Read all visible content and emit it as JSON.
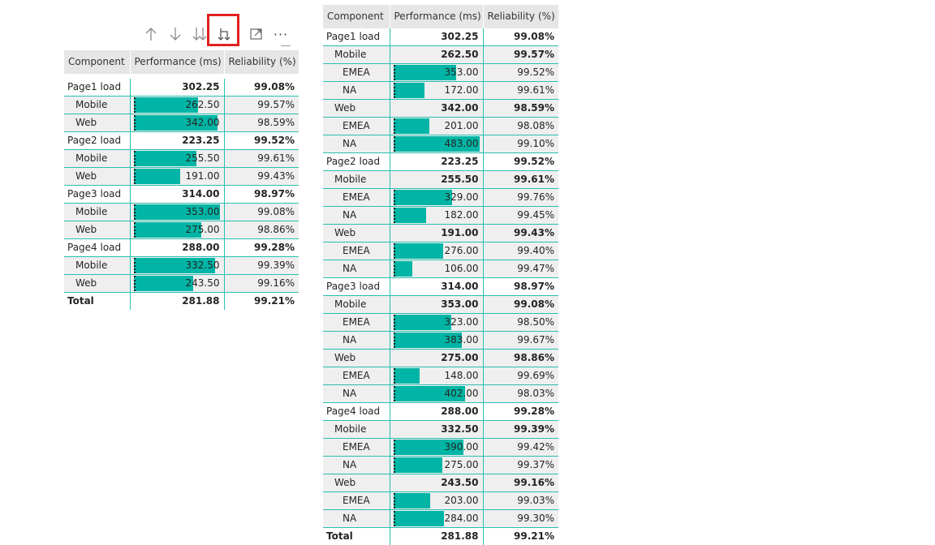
{
  "toolbar": {
    "icons": [
      "arrow-up-icon",
      "arrow-down-icon",
      "double-arrow-down-icon",
      "expand-next-level-icon",
      "focus-mode-icon",
      "more-options-icon"
    ],
    "more_label": "···"
  },
  "accent_color": "#00b5a5",
  "highlight_color": "#e02020",
  "left_matrix": {
    "columns": [
      "Component",
      "Performance (ms)",
      "Reliability (%)"
    ],
    "perf_max": 353,
    "rows": [
      {
        "label": "Page1 load",
        "perf": "302.25",
        "rel": "99.08%",
        "level": 0,
        "bold": true,
        "bar": false
      },
      {
        "label": "Mobile",
        "perf": "262.50",
        "rel": "99.57%",
        "level": 1,
        "bold": false,
        "bar": true,
        "value": 262.5
      },
      {
        "label": "Web",
        "perf": "342.00",
        "rel": "98.59%",
        "level": 1,
        "bold": false,
        "bar": true,
        "value": 342
      },
      {
        "label": "Page2 load",
        "perf": "223.25",
        "rel": "99.52%",
        "level": 0,
        "bold": true,
        "bar": false
      },
      {
        "label": "Mobile",
        "perf": "255.50",
        "rel": "99.61%",
        "level": 1,
        "bold": false,
        "bar": true,
        "value": 255.5
      },
      {
        "label": "Web",
        "perf": "191.00",
        "rel": "99.43%",
        "level": 1,
        "bold": false,
        "bar": true,
        "value": 191
      },
      {
        "label": "Page3 load",
        "perf": "314.00",
        "rel": "98.97%",
        "level": 0,
        "bold": true,
        "bar": false
      },
      {
        "label": "Mobile",
        "perf": "353.00",
        "rel": "99.08%",
        "level": 1,
        "bold": false,
        "bar": true,
        "value": 353
      },
      {
        "label": "Web",
        "perf": "275.00",
        "rel": "98.86%",
        "level": 1,
        "bold": false,
        "bar": true,
        "value": 275
      },
      {
        "label": "Page4 load",
        "perf": "288.00",
        "rel": "99.28%",
        "level": 0,
        "bold": true,
        "bar": false
      },
      {
        "label": "Mobile",
        "perf": "332.50",
        "rel": "99.39%",
        "level": 1,
        "bold": false,
        "bar": true,
        "value": 332.5
      },
      {
        "label": "Web",
        "perf": "243.50",
        "rel": "99.16%",
        "level": 1,
        "bold": false,
        "bar": true,
        "value": 243.5
      }
    ],
    "total": {
      "label": "Total",
      "perf": "281.88",
      "rel": "99.21%"
    }
  },
  "right_matrix": {
    "columns": [
      "Component",
      "Performance (ms)",
      "Reliability (%)"
    ],
    "perf_max": 483,
    "rows": [
      {
        "label": "Page1 load",
        "perf": "302.25",
        "rel": "99.08%",
        "level": 0,
        "bold": true,
        "bar": false
      },
      {
        "label": "Mobile",
        "perf": "262.50",
        "rel": "99.57%",
        "level": 1,
        "bold": true,
        "bar": false
      },
      {
        "label": "EMEA",
        "perf": "353.00",
        "rel": "99.52%",
        "level": 2,
        "bold": false,
        "bar": true,
        "value": 353
      },
      {
        "label": "NA",
        "perf": "172.00",
        "rel": "99.61%",
        "level": 2,
        "bold": false,
        "bar": true,
        "value": 172
      },
      {
        "label": "Web",
        "perf": "342.00",
        "rel": "98.59%",
        "level": 1,
        "bold": true,
        "bar": false
      },
      {
        "label": "EMEA",
        "perf": "201.00",
        "rel": "98.08%",
        "level": 2,
        "bold": false,
        "bar": true,
        "value": 201
      },
      {
        "label": "NA",
        "perf": "483.00",
        "rel": "99.10%",
        "level": 2,
        "bold": false,
        "bar": true,
        "value": 483
      },
      {
        "label": "Page2 load",
        "perf": "223.25",
        "rel": "99.52%",
        "level": 0,
        "bold": true,
        "bar": false
      },
      {
        "label": "Mobile",
        "perf": "255.50",
        "rel": "99.61%",
        "level": 1,
        "bold": true,
        "bar": false
      },
      {
        "label": "EMEA",
        "perf": "329.00",
        "rel": "99.76%",
        "level": 2,
        "bold": false,
        "bar": true,
        "value": 329
      },
      {
        "label": "NA",
        "perf": "182.00",
        "rel": "99.45%",
        "level": 2,
        "bold": false,
        "bar": true,
        "value": 182
      },
      {
        "label": "Web",
        "perf": "191.00",
        "rel": "99.43%",
        "level": 1,
        "bold": true,
        "bar": false
      },
      {
        "label": "EMEA",
        "perf": "276.00",
        "rel": "99.40%",
        "level": 2,
        "bold": false,
        "bar": true,
        "value": 276
      },
      {
        "label": "NA",
        "perf": "106.00",
        "rel": "99.47%",
        "level": 2,
        "bold": false,
        "bar": true,
        "value": 106
      },
      {
        "label": "Page3 load",
        "perf": "314.00",
        "rel": "98.97%",
        "level": 0,
        "bold": true,
        "bar": false
      },
      {
        "label": "Mobile",
        "perf": "353.00",
        "rel": "99.08%",
        "level": 1,
        "bold": true,
        "bar": false
      },
      {
        "label": "EMEA",
        "perf": "323.00",
        "rel": "98.50%",
        "level": 2,
        "bold": false,
        "bar": true,
        "value": 323
      },
      {
        "label": "NA",
        "perf": "383.00",
        "rel": "99.67%",
        "level": 2,
        "bold": false,
        "bar": true,
        "value": 383
      },
      {
        "label": "Web",
        "perf": "275.00",
        "rel": "98.86%",
        "level": 1,
        "bold": true,
        "bar": false
      },
      {
        "label": "EMEA",
        "perf": "148.00",
        "rel": "99.69%",
        "level": 2,
        "bold": false,
        "bar": true,
        "value": 148
      },
      {
        "label": "NA",
        "perf": "402.00",
        "rel": "98.03%",
        "level": 2,
        "bold": false,
        "bar": true,
        "value": 402
      },
      {
        "label": "Page4 load",
        "perf": "288.00",
        "rel": "99.28%",
        "level": 0,
        "bold": true,
        "bar": false
      },
      {
        "label": "Mobile",
        "perf": "332.50",
        "rel": "99.39%",
        "level": 1,
        "bold": true,
        "bar": false
      },
      {
        "label": "EMEA",
        "perf": "390.00",
        "rel": "99.42%",
        "level": 2,
        "bold": false,
        "bar": true,
        "value": 390
      },
      {
        "label": "NA",
        "perf": "275.00",
        "rel": "99.37%",
        "level": 2,
        "bold": false,
        "bar": true,
        "value": 275
      },
      {
        "label": "Web",
        "perf": "243.50",
        "rel": "99.16%",
        "level": 1,
        "bold": true,
        "bar": false
      },
      {
        "label": "EMEA",
        "perf": "203.00",
        "rel": "99.03%",
        "level": 2,
        "bold": false,
        "bar": true,
        "value": 203
      },
      {
        "label": "NA",
        "perf": "284.00",
        "rel": "99.30%",
        "level": 2,
        "bold": false,
        "bar": true,
        "value": 284
      }
    ],
    "total": {
      "label": "Total",
      "perf": "281.88",
      "rel": "99.21%"
    }
  }
}
